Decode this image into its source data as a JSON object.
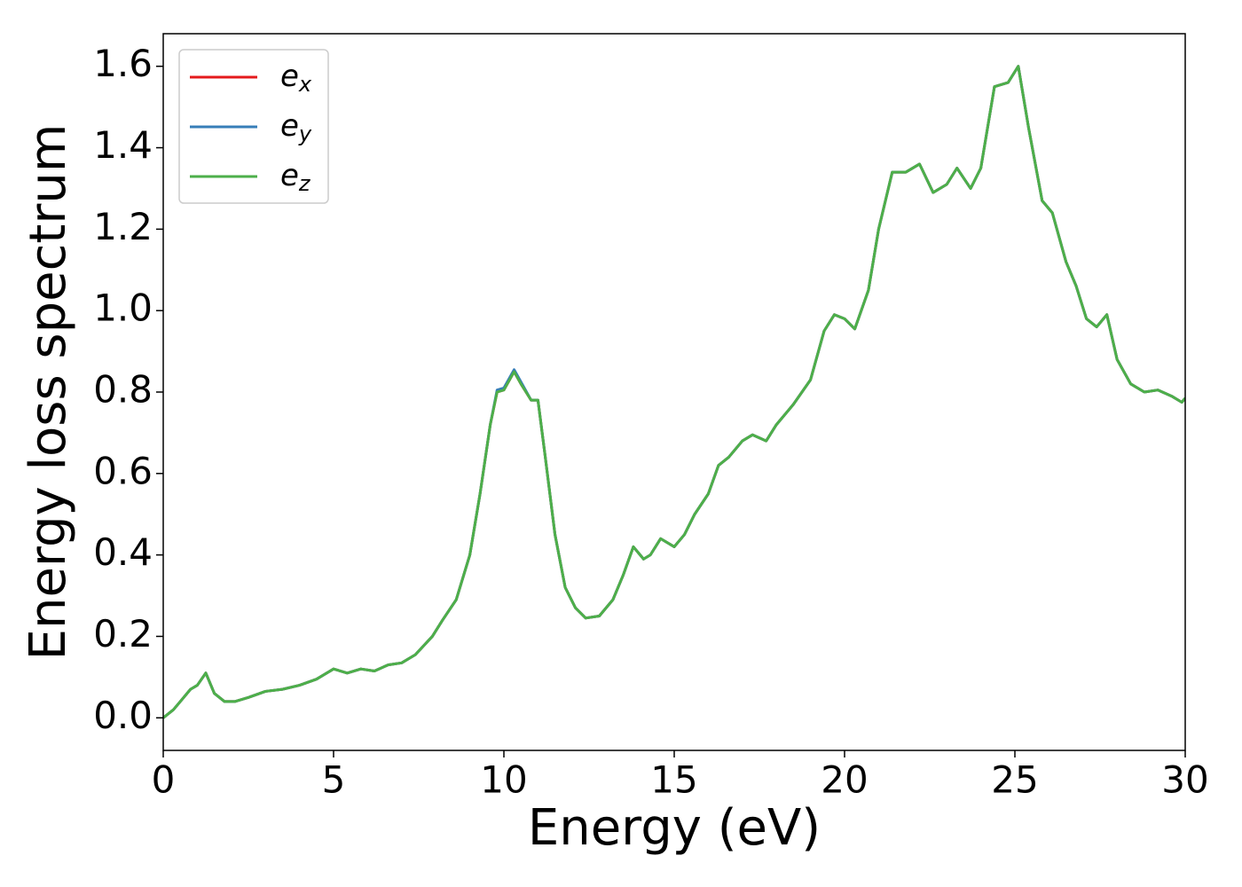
{
  "chart_data": {
    "type": "line",
    "xlabel": "Energy (eV)",
    "ylabel": "Energy loss spectrum",
    "x": [
      0,
      0.3,
      0.5,
      0.8,
      1.0,
      1.25,
      1.5,
      1.8,
      2.1,
      2.5,
      3.0,
      3.5,
      4.0,
      4.5,
      5.0,
      5.4,
      5.8,
      6.2,
      6.6,
      7.0,
      7.4,
      7.9,
      8.2,
      8.6,
      9.0,
      9.3,
      9.6,
      9.8,
      10.0,
      10.3,
      10.5,
      10.8,
      11.0,
      11.2,
      11.5,
      11.8,
      12.1,
      12.4,
      12.8,
      13.2,
      13.5,
      13.8,
      14.1,
      14.3,
      14.6,
      15.0,
      15.3,
      15.6,
      16.0,
      16.3,
      16.6,
      17.0,
      17.3,
      17.7,
      18.0,
      18.5,
      19.0,
      19.4,
      19.7,
      20.0,
      20.3,
      20.7,
      21.0,
      21.4,
      21.8,
      22.2,
      22.6,
      23.0,
      23.3,
      23.7,
      24.0,
      24.4,
      24.8,
      25.1,
      25.4,
      25.8,
      26.1,
      26.5,
      26.8,
      27.1,
      27.4,
      27.7,
      28.0,
      28.4,
      28.8,
      29.2,
      29.6,
      29.9,
      30
    ],
    "series": [
      {
        "name": "ex",
        "color": "#e41a1c",
        "values": [
          0,
          0.02,
          0.04,
          0.07,
          0.08,
          0.11,
          0.06,
          0.04,
          0.04,
          0.05,
          0.065,
          0.07,
          0.08,
          0.095,
          0.12,
          0.11,
          0.12,
          0.115,
          0.13,
          0.135,
          0.155,
          0.2,
          0.24,
          0.29,
          0.4,
          0.55,
          0.72,
          0.8,
          0.805,
          0.85,
          0.82,
          0.78,
          0.78,
          0.65,
          0.45,
          0.32,
          0.27,
          0.245,
          0.25,
          0.29,
          0.35,
          0.42,
          0.39,
          0.4,
          0.44,
          0.42,
          0.45,
          0.5,
          0.55,
          0.62,
          0.64,
          0.68,
          0.695,
          0.68,
          0.72,
          0.77,
          0.83,
          0.95,
          0.99,
          0.98,
          0.955,
          1.05,
          1.2,
          1.34,
          1.34,
          1.36,
          1.29,
          1.31,
          1.35,
          1.3,
          1.35,
          1.55,
          1.56,
          1.6,
          1.45,
          1.27,
          1.24,
          1.12,
          1.06,
          0.98,
          0.96,
          0.99,
          0.88,
          0.82,
          0.8,
          0.805,
          0.79,
          0.775,
          0.785
        ]
      },
      {
        "name": "ey",
        "color": "#377eb8",
        "values": [
          0,
          0.02,
          0.04,
          0.07,
          0.08,
          0.11,
          0.06,
          0.04,
          0.04,
          0.05,
          0.065,
          0.07,
          0.08,
          0.095,
          0.12,
          0.11,
          0.12,
          0.115,
          0.13,
          0.135,
          0.155,
          0.2,
          0.24,
          0.29,
          0.4,
          0.55,
          0.72,
          0.805,
          0.81,
          0.855,
          0.825,
          0.78,
          0.78,
          0.65,
          0.45,
          0.32,
          0.27,
          0.245,
          0.25,
          0.29,
          0.35,
          0.42,
          0.39,
          0.4,
          0.44,
          0.42,
          0.45,
          0.5,
          0.55,
          0.62,
          0.64,
          0.68,
          0.695,
          0.68,
          0.72,
          0.77,
          0.83,
          0.95,
          0.99,
          0.98,
          0.955,
          1.05,
          1.2,
          1.34,
          1.34,
          1.36,
          1.29,
          1.31,
          1.35,
          1.3,
          1.35,
          1.55,
          1.56,
          1.6,
          1.45,
          1.27,
          1.24,
          1.12,
          1.06,
          0.98,
          0.96,
          0.99,
          0.88,
          0.82,
          0.8,
          0.805,
          0.79,
          0.775,
          0.785
        ]
      },
      {
        "name": "ez",
        "color": "#4daf4a",
        "values": [
          0,
          0.02,
          0.04,
          0.07,
          0.08,
          0.11,
          0.06,
          0.04,
          0.04,
          0.05,
          0.065,
          0.07,
          0.08,
          0.095,
          0.12,
          0.11,
          0.12,
          0.115,
          0.13,
          0.135,
          0.155,
          0.2,
          0.24,
          0.29,
          0.4,
          0.55,
          0.72,
          0.8,
          0.805,
          0.85,
          0.82,
          0.78,
          0.78,
          0.65,
          0.45,
          0.32,
          0.27,
          0.245,
          0.25,
          0.29,
          0.35,
          0.42,
          0.39,
          0.4,
          0.44,
          0.42,
          0.45,
          0.5,
          0.55,
          0.62,
          0.64,
          0.68,
          0.695,
          0.68,
          0.72,
          0.77,
          0.83,
          0.95,
          0.99,
          0.98,
          0.955,
          1.05,
          1.2,
          1.34,
          1.34,
          1.36,
          1.29,
          1.31,
          1.35,
          1.3,
          1.35,
          1.55,
          1.56,
          1.6,
          1.45,
          1.27,
          1.24,
          1.12,
          1.06,
          0.98,
          0.96,
          0.99,
          0.88,
          0.82,
          0.8,
          0.805,
          0.79,
          0.775,
          0.785
        ]
      }
    ],
    "xlim": [
      0,
      30
    ],
    "xticks": [
      0,
      5,
      10,
      15,
      20,
      25,
      30
    ],
    "ylim": [
      -0.08,
      1.68
    ],
    "yticks": [
      {
        "value": 0,
        "label": "0.0"
      },
      0.2,
      0.4,
      0.6,
      0.8,
      {
        "value": 1,
        "label": "1.0"
      },
      1.2,
      1.4,
      1.6
    ],
    "grid": false,
    "legend": "upper left"
  }
}
